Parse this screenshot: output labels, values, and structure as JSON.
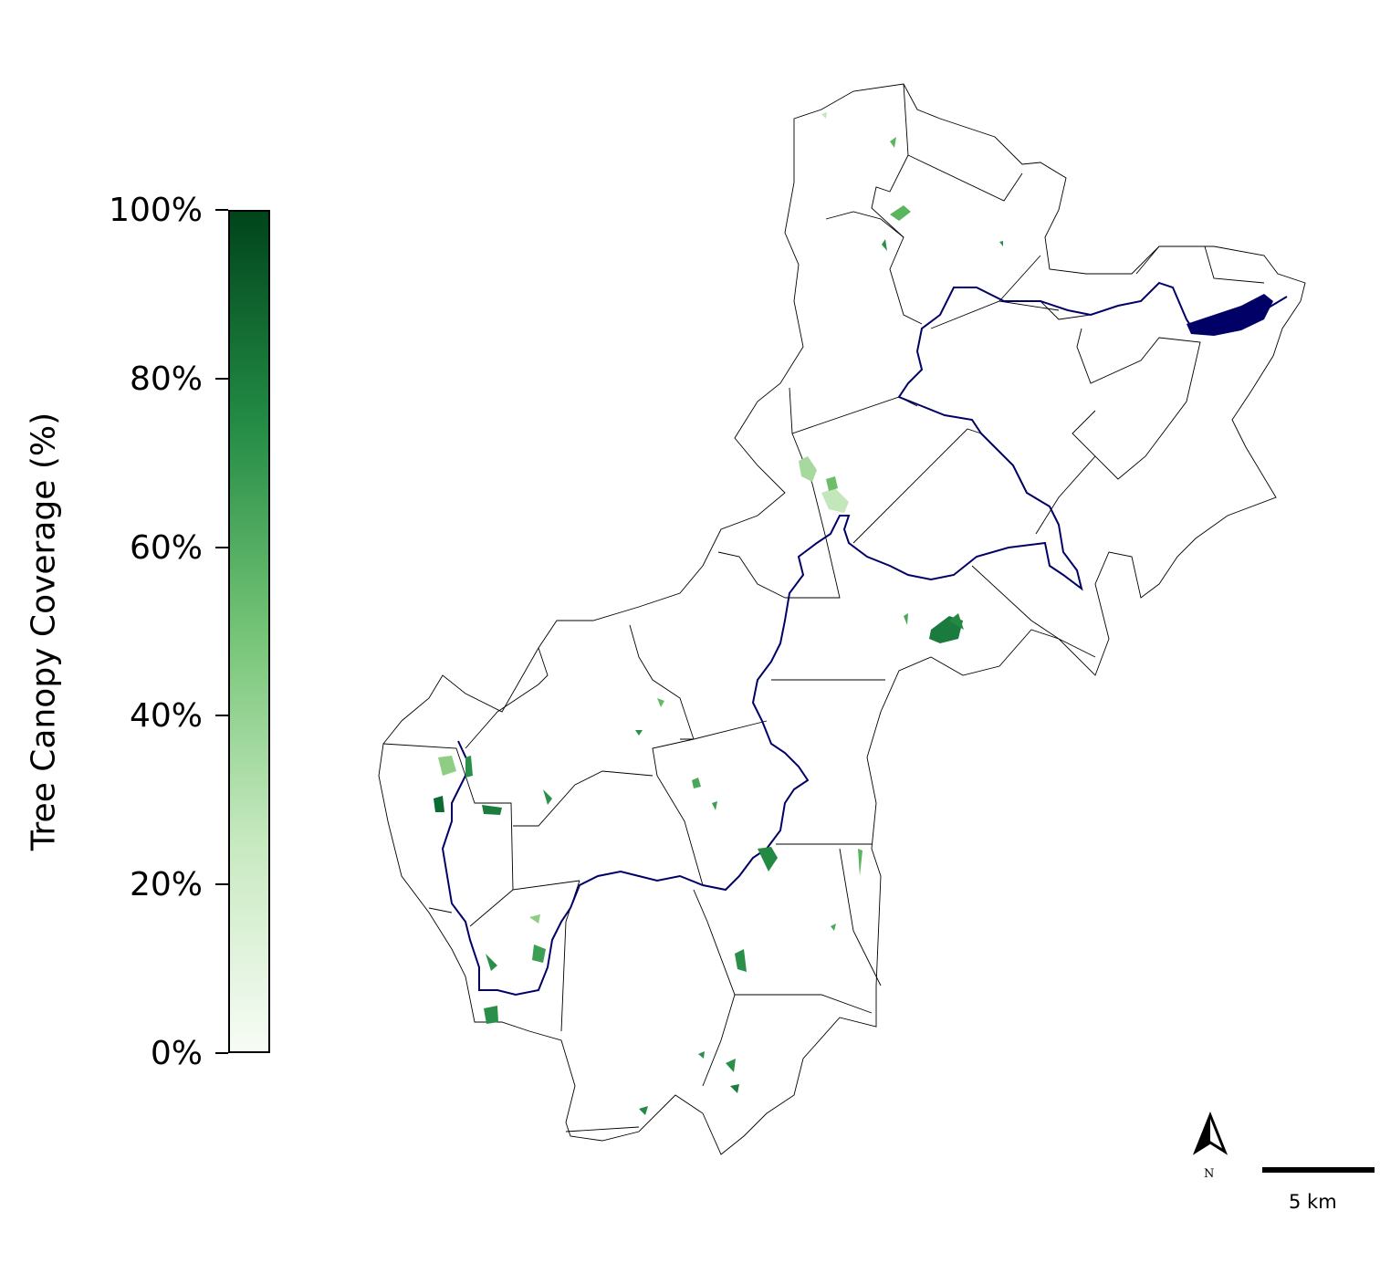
{
  "legend": {
    "title": "Tree Canopy Coverage (%)",
    "ticks": [
      "100%",
      "80%",
      "60%",
      "40%",
      "20%",
      "0%"
    ],
    "color_low": "#f7fcf5",
    "color_high": "#00441b"
  },
  "map": {
    "river_color": "#000066",
    "boundary_color": "#000000",
    "north_label": "N",
    "scale_label": "5 km",
    "north_arrow_icon": "north-arrow-icon"
  }
}
